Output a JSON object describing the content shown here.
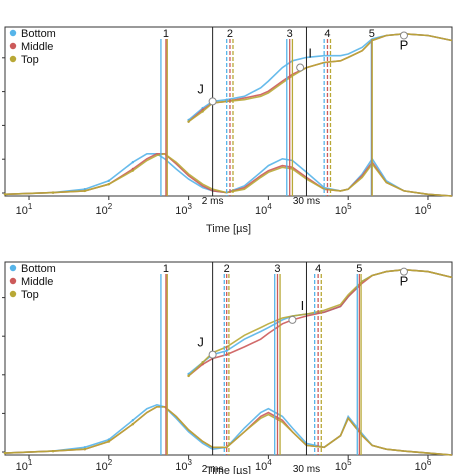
{
  "chart_data": [
    {
      "type": "line",
      "xscale": "log",
      "xlim": [
        5,
        2000000
      ],
      "xticks": [
        10,
        100,
        1000,
        10000,
        100000,
        1000000
      ],
      "xticklabels": [
        {
          "base": "10",
          "exp": "1"
        },
        {
          "base": "10",
          "exp": "2"
        },
        {
          "base": "10",
          "exp": "3"
        },
        {
          "base": "10",
          "exp": "4"
        },
        {
          "base": "10",
          "exp": "5"
        },
        {
          "base": "10",
          "exp": "6"
        }
      ],
      "xlabel": "Time [µs]",
      "ylim": [
        0,
        1
      ],
      "legend": {
        "position": "top-left",
        "entries": [
          {
            "name": "Bottom",
            "color": "#56b4e9"
          },
          {
            "name": "Middle",
            "color": "#cc5a5a"
          },
          {
            "name": "Top",
            "color": "#b8a836"
          }
        ]
      },
      "black_lines": [
        {
          "x": 2000,
          "label": "2 ms"
        },
        {
          "x": 30000,
          "label": "30 ms"
        }
      ],
      "marker_groups": [
        {
          "label": "1",
          "positions": [
            450,
            520,
            540
          ]
        },
        {
          "label": "2",
          "positions": [
            3000,
            3300,
            3600
          ]
        },
        {
          "label": "3",
          "positions": [
            17000,
            18500,
            20000
          ]
        },
        {
          "label": "4",
          "positions": [
            50000,
            55000,
            60000
          ]
        },
        {
          "label": "5",
          "positions": [
            195000,
            198000,
            200000
          ]
        }
      ],
      "points": [
        {
          "label": "J",
          "x": 2000,
          "y": 0.56
        },
        {
          "label": "I",
          "x": 25000,
          "y": 0.76
        },
        {
          "label": "P",
          "x": 500000,
          "y": 0.95
        }
      ],
      "series": [
        {
          "name": "Bottom",
          "color": "#56b4e9",
          "x": [
            5,
            20,
            50,
            100,
            200,
            300,
            400,
            500,
            700,
            1000,
            1500,
            2000,
            3000,
            5000,
            8000,
            10000,
            15000,
            20000,
            30000,
            50000,
            80000,
            100000,
            150000,
            200000,
            300000,
            500000,
            1000000,
            2000000
          ],
          "y": [
            0.01,
            0.02,
            0.04,
            0.09,
            0.2,
            0.25,
            0.25,
            0.22,
            0.16,
            0.1,
            0.05,
            0.03,
            0.02,
            0.06,
            0.14,
            0.18,
            0.22,
            0.21,
            0.14,
            0.05,
            0.03,
            0.04,
            0.13,
            0.22,
            0.09,
            0.03,
            0.01,
            0.0
          ],
          "rise_x": [
            1000,
            1500,
            2000,
            3000,
            5000,
            8000,
            10000,
            15000,
            20000,
            30000,
            50000,
            80000,
            100000,
            150000,
            200000,
            300000,
            500000,
            1000000,
            2000000
          ],
          "rise_y": [
            0.45,
            0.52,
            0.56,
            0.57,
            0.59,
            0.64,
            0.68,
            0.76,
            0.8,
            0.82,
            0.83,
            0.83,
            0.84,
            0.88,
            0.93,
            0.95,
            0.96,
            0.95,
            0.92
          ]
        },
        {
          "name": "Middle",
          "color": "#cc5a5a",
          "x": [
            5,
            20,
            50,
            100,
            200,
            300,
            400,
            500,
            700,
            1000,
            1500,
            2000,
            3000,
            5000,
            8000,
            10000,
            15000,
            20000,
            30000,
            50000,
            80000,
            100000,
            150000,
            200000,
            300000,
            500000,
            1000000,
            2000000
          ],
          "y": [
            0.01,
            0.02,
            0.03,
            0.07,
            0.16,
            0.22,
            0.25,
            0.25,
            0.19,
            0.12,
            0.06,
            0.03,
            0.02,
            0.05,
            0.12,
            0.15,
            0.18,
            0.17,
            0.11,
            0.04,
            0.03,
            0.04,
            0.12,
            0.2,
            0.08,
            0.03,
            0.01,
            0.0
          ],
          "rise_x": [
            1000,
            1500,
            2000,
            3000,
            5000,
            8000,
            10000,
            15000,
            20000,
            30000,
            50000,
            80000,
            100000,
            150000,
            200000,
            300000,
            500000,
            1000000,
            2000000
          ],
          "rise_y": [
            0.44,
            0.51,
            0.55,
            0.56,
            0.58,
            0.6,
            0.62,
            0.68,
            0.72,
            0.76,
            0.79,
            0.8,
            0.82,
            0.86,
            0.92,
            0.95,
            0.96,
            0.95,
            0.92
          ]
        },
        {
          "name": "Top",
          "color": "#b8a836",
          "x": [
            5,
            20,
            50,
            100,
            200,
            300,
            400,
            500,
            700,
            1000,
            1500,
            2000,
            3000,
            5000,
            8000,
            10000,
            15000,
            20000,
            30000,
            50000,
            80000,
            100000,
            150000,
            200000,
            300000,
            500000,
            1000000,
            2000000
          ],
          "y": [
            0.01,
            0.02,
            0.03,
            0.07,
            0.15,
            0.21,
            0.24,
            0.25,
            0.2,
            0.13,
            0.07,
            0.04,
            0.02,
            0.04,
            0.11,
            0.14,
            0.17,
            0.16,
            0.1,
            0.04,
            0.03,
            0.04,
            0.11,
            0.19,
            0.08,
            0.03,
            0.01,
            0.0
          ],
          "rise_x": [
            1000,
            1500,
            2000,
            3000,
            5000,
            8000,
            10000,
            15000,
            20000,
            30000,
            50000,
            80000,
            100000,
            150000,
            200000,
            300000,
            500000,
            1000000,
            2000000
          ],
          "rise_y": [
            0.44,
            0.5,
            0.55,
            0.56,
            0.57,
            0.59,
            0.61,
            0.67,
            0.71,
            0.76,
            0.79,
            0.8,
            0.82,
            0.86,
            0.92,
            0.95,
            0.96,
            0.95,
            0.92
          ]
        }
      ]
    },
    {
      "type": "line",
      "xscale": "log",
      "xlim": [
        5,
        2000000
      ],
      "xticks": [
        10,
        100,
        1000,
        10000,
        100000,
        1000000
      ],
      "xticklabels": [
        {
          "base": "10",
          "exp": "1"
        },
        {
          "base": "10",
          "exp": "2"
        },
        {
          "base": "10",
          "exp": "3"
        },
        {
          "base": "10",
          "exp": "4"
        },
        {
          "base": "10",
          "exp": "5"
        },
        {
          "base": "10",
          "exp": "6"
        }
      ],
      "xlabel": "Time [µs]",
      "ylim": [
        0,
        1
      ],
      "legend": {
        "position": "top-left",
        "entries": [
          {
            "name": "Bottom",
            "color": "#56b4e9"
          },
          {
            "name": "Middle",
            "color": "#cc5a5a"
          },
          {
            "name": "Top",
            "color": "#b8a836"
          }
        ]
      },
      "black_lines": [
        {
          "x": 2000,
          "label": "2 ms"
        },
        {
          "x": 30000,
          "label": "30 ms"
        }
      ],
      "marker_groups": [
        {
          "label": "1",
          "positions": [
            450,
            520,
            540
          ]
        },
        {
          "label": "2",
          "positions": [
            2800,
            3000,
            3200
          ]
        },
        {
          "label": "3",
          "positions": [
            12000,
            13000,
            14000
          ]
        },
        {
          "label": "4",
          "positions": [
            38000,
            42000,
            46000
          ]
        },
        {
          "label": "5",
          "positions": [
            130000,
            138000,
            145000
          ]
        }
      ],
      "points": [
        {
          "label": "J",
          "x": 2000,
          "y": 0.52
        },
        {
          "label": "I",
          "x": 20000,
          "y": 0.7
        },
        {
          "label": "P",
          "x": 500000,
          "y": 0.95
        }
      ],
      "series": [
        {
          "name": "Bottom",
          "color": "#56b4e9",
          "x": [
            5,
            20,
            50,
            100,
            200,
            300,
            400,
            500,
            700,
            1000,
            1500,
            2000,
            3000,
            5000,
            8000,
            10000,
            15000,
            20000,
            30000,
            50000,
            80000,
            100000,
            150000,
            200000,
            300000,
            500000,
            1000000,
            2000000
          ],
          "y": [
            0.01,
            0.02,
            0.04,
            0.08,
            0.18,
            0.24,
            0.26,
            0.25,
            0.19,
            0.12,
            0.06,
            0.03,
            0.04,
            0.14,
            0.22,
            0.24,
            0.2,
            0.14,
            0.06,
            0.04,
            0.1,
            0.2,
            0.11,
            0.05,
            0.03,
            0.02,
            0.01,
            0.0
          ],
          "rise_x": [
            1000,
            1500,
            2000,
            3000,
            5000,
            8000,
            10000,
            15000,
            20000,
            30000,
            50000,
            80000,
            100000,
            150000,
            200000,
            300000,
            500000,
            1000000,
            2000000
          ],
          "rise_y": [
            0.42,
            0.48,
            0.52,
            0.54,
            0.6,
            0.64,
            0.66,
            0.7,
            0.72,
            0.73,
            0.74,
            0.77,
            0.82,
            0.9,
            0.93,
            0.95,
            0.96,
            0.95,
            0.92
          ]
        },
        {
          "name": "Middle",
          "color": "#cc5a5a",
          "x": [
            5,
            20,
            50,
            100,
            200,
            300,
            400,
            500,
            700,
            1000,
            1500,
            2000,
            3000,
            5000,
            8000,
            10000,
            15000,
            20000,
            30000,
            50000,
            80000,
            100000,
            150000,
            200000,
            300000,
            500000,
            1000000,
            2000000
          ],
          "y": [
            0.01,
            0.02,
            0.03,
            0.07,
            0.16,
            0.22,
            0.25,
            0.25,
            0.2,
            0.13,
            0.07,
            0.04,
            0.04,
            0.12,
            0.2,
            0.22,
            0.18,
            0.12,
            0.05,
            0.04,
            0.1,
            0.19,
            0.1,
            0.05,
            0.03,
            0.02,
            0.01,
            0.0
          ],
          "rise_x": [
            1000,
            1500,
            2000,
            3000,
            5000,
            8000,
            10000,
            15000,
            20000,
            30000,
            50000,
            80000,
            100000,
            150000,
            200000,
            300000,
            500000,
            1000000,
            2000000
          ],
          "rise_y": [
            0.41,
            0.47,
            0.5,
            0.52,
            0.56,
            0.6,
            0.63,
            0.68,
            0.7,
            0.72,
            0.74,
            0.77,
            0.82,
            0.89,
            0.93,
            0.95,
            0.96,
            0.95,
            0.92
          ]
        },
        {
          "name": "Top",
          "color": "#b8a836",
          "x": [
            5,
            20,
            50,
            100,
            200,
            300,
            400,
            500,
            700,
            1000,
            1500,
            2000,
            3000,
            5000,
            8000,
            10000,
            15000,
            20000,
            30000,
            50000,
            80000,
            100000,
            150000,
            200000,
            300000,
            500000,
            1000000,
            2000000
          ],
          "y": [
            0.01,
            0.02,
            0.03,
            0.07,
            0.16,
            0.22,
            0.25,
            0.25,
            0.2,
            0.13,
            0.07,
            0.04,
            0.04,
            0.12,
            0.19,
            0.21,
            0.17,
            0.12,
            0.05,
            0.04,
            0.1,
            0.19,
            0.1,
            0.05,
            0.03,
            0.02,
            0.01,
            0.0
          ],
          "rise_x": [
            1000,
            1500,
            2000,
            3000,
            5000,
            8000,
            10000,
            15000,
            20000,
            30000,
            50000,
            80000,
            100000,
            150000,
            200000,
            300000,
            500000,
            1000000,
            2000000
          ],
          "rise_y": [
            0.41,
            0.48,
            0.53,
            0.56,
            0.62,
            0.66,
            0.68,
            0.71,
            0.72,
            0.73,
            0.75,
            0.78,
            0.83,
            0.9,
            0.93,
            0.95,
            0.96,
            0.95,
            0.92
          ]
        }
      ]
    }
  ]
}
